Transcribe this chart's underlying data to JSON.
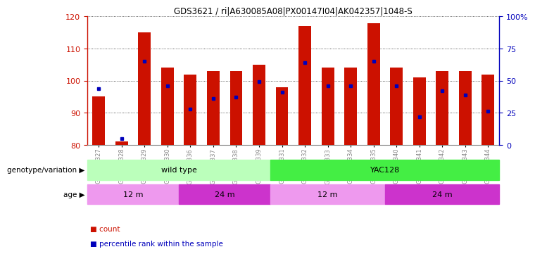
{
  "title": "GDS3621 / ri|A630085A08|PX00147I04|AK042357|1048-S",
  "samples": [
    "GSM491327",
    "GSM491328",
    "GSM491329",
    "GSM491330",
    "GSM491336",
    "GSM491337",
    "GSM491338",
    "GSM491339",
    "GSM491331",
    "GSM491332",
    "GSM491333",
    "GSM491334",
    "GSM491335",
    "GSM491340",
    "GSM491341",
    "GSM491342",
    "GSM491343",
    "GSM491344"
  ],
  "counts": [
    95,
    81,
    115,
    104,
    102,
    103,
    103,
    105,
    98,
    117,
    104,
    104,
    118,
    104,
    101,
    103,
    103,
    102
  ],
  "percentile_ranks": [
    44,
    5,
    65,
    46,
    28,
    36,
    37,
    49,
    41,
    64,
    46,
    46,
    65,
    46,
    22,
    42,
    39,
    26
  ],
  "ylim_left": [
    80,
    120
  ],
  "ylim_right": [
    0,
    100
  ],
  "yticks_left": [
    80,
    90,
    100,
    110,
    120
  ],
  "yticks_right": [
    0,
    25,
    50,
    75,
    100
  ],
  "bar_color": "#cc1100",
  "dot_color": "#0000bb",
  "bar_bottom": 80,
  "genotype_groups": [
    {
      "label": "wild type",
      "start": 0,
      "end": 8,
      "color": "#bbffbb"
    },
    {
      "label": "YAC128",
      "start": 8,
      "end": 18,
      "color": "#44ee44"
    }
  ],
  "age_groups": [
    {
      "label": "12 m",
      "start": 0,
      "end": 4,
      "color": "#ee99ee"
    },
    {
      "label": "24 m",
      "start": 4,
      "end": 8,
      "color": "#cc33cc"
    },
    {
      "label": "12 m",
      "start": 8,
      "end": 13,
      "color": "#ee99ee"
    },
    {
      "label": "24 m",
      "start": 13,
      "end": 18,
      "color": "#cc33cc"
    }
  ],
  "tick_label_color": "#888888",
  "left_axis_color": "#cc1100",
  "right_axis_color": "#0000bb",
  "bg_color": "#ffffff",
  "ytick_right_labels": [
    "0",
    "25",
    "50",
    "75",
    "100%"
  ]
}
